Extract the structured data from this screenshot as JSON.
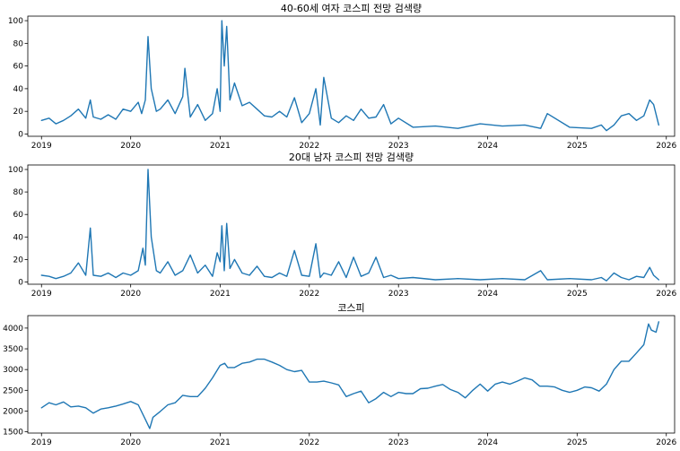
{
  "chart_data": [
    {
      "type": "line",
      "title": "40-60세 여자 코스피 전망 검색량",
      "xlabel": "",
      "ylabel": "",
      "xlim": [
        "2018-11-06",
        "2026-02-04"
      ],
      "ylim": [
        -2,
        104
      ],
      "x_ticks": [
        "2019",
        "2020",
        "2021",
        "2022",
        "2023",
        "2024",
        "2025",
        "2026"
      ],
      "y_ticks": [
        0,
        20,
        40,
        60,
        80,
        100
      ],
      "grid": false,
      "color": "#1f77b4",
      "x": [
        "2019-01-01",
        "2019-02-01",
        "2019-03-01",
        "2019-04-01",
        "2019-05-01",
        "2019-06-01",
        "2019-07-01",
        "2019-07-20",
        "2019-08-01",
        "2019-09-01",
        "2019-10-01",
        "2019-11-01",
        "2019-12-01",
        "2020-01-01",
        "2020-02-01",
        "2020-02-15",
        "2020-03-01",
        "2020-03-12",
        "2020-03-25",
        "2020-04-15",
        "2020-05-01",
        "2020-06-01",
        "2020-07-01",
        "2020-08-01",
        "2020-08-10",
        "2020-09-01",
        "2020-10-01",
        "2020-11-01",
        "2020-12-01",
        "2020-12-20",
        "2021-01-01",
        "2021-01-08",
        "2021-01-18",
        "2021-01-28",
        "2021-02-10",
        "2021-03-01",
        "2021-04-01",
        "2021-05-01",
        "2021-06-01",
        "2021-07-01",
        "2021-08-01",
        "2021-09-01",
        "2021-10-01",
        "2021-11-01",
        "2021-12-01",
        "2022-01-01",
        "2022-01-28",
        "2022-02-15",
        "2022-03-01",
        "2022-04-01",
        "2022-05-01",
        "2022-06-01",
        "2022-07-01",
        "2022-08-01",
        "2022-09-01",
        "2022-10-01",
        "2022-11-01",
        "2022-12-01",
        "2023-01-01",
        "2023-03-01",
        "2023-06-01",
        "2023-09-01",
        "2023-12-01",
        "2024-03-01",
        "2024-06-01",
        "2024-08-05",
        "2024-09-01",
        "2024-12-01",
        "2025-03-01",
        "2025-04-10",
        "2025-05-01",
        "2025-06-01",
        "2025-07-01",
        "2025-08-01",
        "2025-09-01",
        "2025-10-01",
        "2025-10-25",
        "2025-11-10",
        "2025-12-01"
      ],
      "values": [
        12,
        14,
        9,
        12,
        16,
        22,
        14,
        30,
        15,
        13,
        17,
        13,
        22,
        20,
        28,
        18,
        30,
        86,
        40,
        20,
        22,
        30,
        18,
        33,
        58,
        15,
        26,
        12,
        18,
        40,
        20,
        100,
        60,
        95,
        30,
        45,
        25,
        28,
        22,
        16,
        15,
        20,
        15,
        32,
        10,
        18,
        40,
        8,
        50,
        14,
        10,
        16,
        12,
        22,
        14,
        15,
        26,
        9,
        14,
        6,
        7,
        5,
        9,
        7,
        8,
        5,
        18,
        6,
        5,
        8,
        3,
        8,
        16,
        18,
        12,
        16,
        30,
        26,
        8
      ]
    },
    {
      "type": "line",
      "title": "20대 남자 코스피 전망 검색량",
      "xlabel": "",
      "ylabel": "",
      "xlim": [
        "2018-11-06",
        "2026-02-04"
      ],
      "ylim": [
        -2,
        104
      ],
      "x_ticks": [
        "2019",
        "2020",
        "2021",
        "2022",
        "2023",
        "2024",
        "2025",
        "2026"
      ],
      "y_ticks": [
        0,
        20,
        40,
        60,
        80,
        100
      ],
      "grid": false,
      "color": "#1f77b4",
      "x": [
        "2019-01-01",
        "2019-02-01",
        "2019-03-01",
        "2019-04-01",
        "2019-05-01",
        "2019-06-01",
        "2019-07-01",
        "2019-07-20",
        "2019-08-01",
        "2019-09-01",
        "2019-10-01",
        "2019-11-01",
        "2019-12-01",
        "2020-01-01",
        "2020-02-01",
        "2020-02-20",
        "2020-03-01",
        "2020-03-12",
        "2020-03-25",
        "2020-04-15",
        "2020-05-01",
        "2020-06-01",
        "2020-07-01",
        "2020-08-01",
        "2020-09-01",
        "2020-10-01",
        "2020-11-01",
        "2020-12-01",
        "2020-12-20",
        "2021-01-01",
        "2021-01-08",
        "2021-01-18",
        "2021-01-28",
        "2021-02-10",
        "2021-03-01",
        "2021-04-01",
        "2021-05-01",
        "2021-06-01",
        "2021-07-01",
        "2021-08-01",
        "2021-09-01",
        "2021-10-01",
        "2021-11-01",
        "2021-12-01",
        "2022-01-01",
        "2022-01-28",
        "2022-02-15",
        "2022-03-01",
        "2022-04-01",
        "2022-05-01",
        "2022-06-01",
        "2022-07-01",
        "2022-08-01",
        "2022-09-01",
        "2022-10-01",
        "2022-11-01",
        "2022-12-01",
        "2023-01-01",
        "2023-03-01",
        "2023-06-01",
        "2023-09-01",
        "2023-12-01",
        "2024-03-01",
        "2024-06-01",
        "2024-08-05",
        "2024-09-01",
        "2024-12-01",
        "2025-03-01",
        "2025-04-10",
        "2025-05-01",
        "2025-06-01",
        "2025-07-01",
        "2025-08-01",
        "2025-09-01",
        "2025-10-01",
        "2025-10-25",
        "2025-11-10",
        "2025-12-01"
      ],
      "values": [
        6,
        5,
        3,
        5,
        8,
        17,
        6,
        48,
        6,
        5,
        8,
        4,
        8,
        6,
        10,
        30,
        15,
        100,
        40,
        10,
        8,
        18,
        6,
        10,
        24,
        8,
        15,
        5,
        26,
        18,
        50,
        10,
        52,
        12,
        20,
        8,
        6,
        14,
        5,
        4,
        8,
        5,
        28,
        6,
        5,
        34,
        4,
        8,
        6,
        18,
        4,
        22,
        5,
        8,
        22,
        4,
        6,
        3,
        4,
        2,
        3,
        2,
        3,
        2,
        10,
        2,
        3,
        2,
        4,
        1,
        8,
        4,
        2,
        5,
        4,
        13,
        6,
        2
      ]
    },
    {
      "type": "line",
      "title": "코스피",
      "xlabel": "",
      "ylabel": "",
      "xlim": [
        "2018-11-06",
        "2026-02-04"
      ],
      "ylim": [
        1470,
        4300
      ],
      "x_ticks": [
        "2019",
        "2020",
        "2021",
        "2022",
        "2023",
        "2024",
        "2025",
        "2026"
      ],
      "y_ticks": [
        1500,
        2000,
        2500,
        3000,
        3500,
        4000
      ],
      "grid": false,
      "color": "#1f77b4",
      "x": [
        "2019-01-01",
        "2019-02-01",
        "2019-03-01",
        "2019-04-01",
        "2019-05-01",
        "2019-06-01",
        "2019-07-01",
        "2019-08-01",
        "2019-09-01",
        "2019-10-01",
        "2019-11-01",
        "2019-12-01",
        "2020-01-01",
        "2020-02-01",
        "2020-03-01",
        "2020-03-19",
        "2020-04-01",
        "2020-05-01",
        "2020-06-01",
        "2020-07-01",
        "2020-08-01",
        "2020-09-01",
        "2020-10-01",
        "2020-11-01",
        "2020-12-01",
        "2021-01-01",
        "2021-01-20",
        "2021-02-01",
        "2021-03-01",
        "2021-04-01",
        "2021-05-01",
        "2021-06-01",
        "2021-07-01",
        "2021-08-01",
        "2021-09-01",
        "2021-10-01",
        "2021-11-01",
        "2021-12-01",
        "2022-01-01",
        "2022-02-01",
        "2022-03-01",
        "2022-04-01",
        "2022-05-01",
        "2022-06-01",
        "2022-07-01",
        "2022-08-01",
        "2022-09-01",
        "2022-10-01",
        "2022-11-01",
        "2022-12-01",
        "2023-01-01",
        "2023-02-01",
        "2023-03-01",
        "2023-04-01",
        "2023-05-01",
        "2023-06-01",
        "2023-07-01",
        "2023-08-01",
        "2023-09-01",
        "2023-10-01",
        "2023-11-01",
        "2023-12-01",
        "2024-01-01",
        "2024-02-01",
        "2024-03-01",
        "2024-04-01",
        "2024-05-01",
        "2024-06-01",
        "2024-07-01",
        "2024-08-01",
        "2024-09-01",
        "2024-10-01",
        "2024-11-01",
        "2024-12-01",
        "2025-01-01",
        "2025-02-01",
        "2025-03-01",
        "2025-04-01",
        "2025-05-01",
        "2025-06-01",
        "2025-07-01",
        "2025-08-01",
        "2025-09-01",
        "2025-10-01",
        "2025-10-20",
        "2025-11-01",
        "2025-11-20",
        "2025-12-01"
      ],
      "values": [
        2080,
        2200,
        2150,
        2220,
        2100,
        2120,
        2080,
        1950,
        2050,
        2080,
        2120,
        2170,
        2230,
        2150,
        1800,
        1580,
        1850,
        1990,
        2150,
        2200,
        2380,
        2350,
        2350,
        2550,
        2800,
        3100,
        3150,
        3050,
        3050,
        3150,
        3180,
        3250,
        3250,
        3180,
        3100,
        3000,
        2950,
        2980,
        2700,
        2700,
        2720,
        2680,
        2630,
        2350,
        2420,
        2480,
        2200,
        2300,
        2450,
        2350,
        2450,
        2420,
        2420,
        2540,
        2550,
        2600,
        2640,
        2520,
        2450,
        2320,
        2500,
        2650,
        2480,
        2650,
        2700,
        2650,
        2720,
        2800,
        2750,
        2600,
        2600,
        2580,
        2500,
        2450,
        2500,
        2580,
        2560,
        2480,
        2650,
        3000,
        3200,
        3200,
        3400,
        3600,
        4100,
        3950,
        3900,
        4150
      ]
    }
  ]
}
